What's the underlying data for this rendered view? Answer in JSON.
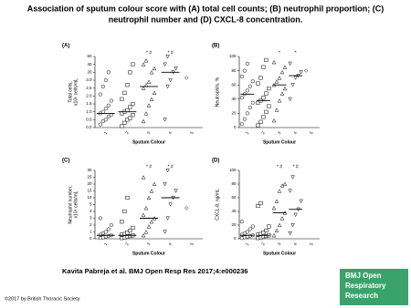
{
  "title": [
    "Association of sputum colour score with (A) total cell counts; (B) neutrophil proportion; (C)",
    "neutrophil number and (D) CXCL-8 concentration."
  ],
  "citation": "Kavita Pabreja et al. BMJ Open Resp Res 2017;4:e000236",
  "copyright": "©2017 by British Thoracic Society",
  "logo": [
    "BMJ Open",
    "Respiratory",
    "Research"
  ],
  "chart_data": [
    {
      "type": "strip",
      "panel": "(A)",
      "ylabel": [
        "Total cells,",
        "x10⁶ cells/mL"
      ],
      "xlabel": "Sputum Colour",
      "categories": [
        "1",
        "2",
        "3",
        "4",
        "5"
      ],
      "markers": [
        "circle",
        "square",
        "triangle-up",
        "triangle-down",
        "diamond"
      ],
      "values": [
        [
          0.2,
          0.4,
          0.5,
          0.7,
          0.8,
          0.9,
          1.0,
          1.2,
          1.4,
          1.7,
          2.1,
          2.6,
          3.0,
          20
        ],
        [
          0.1,
          0.3,
          0.5,
          0.6,
          0.8,
          0.9,
          1.0,
          1.1,
          1.3,
          1.5,
          1.8,
          2.2,
          2.7,
          20,
          40
        ],
        [
          0.4,
          0.9,
          1.4,
          1.8,
          2.2,
          2.5,
          2.7,
          2.9,
          20,
          30,
          40,
          50
        ],
        [
          0.5,
          2.6,
          3.0,
          20,
          30,
          40,
          60
        ],
        [
          8
        ]
      ],
      "medians": [
        0.9,
        1.0,
        2.6,
        20,
        null
      ],
      "annotations": [
        {
          "x": "3",
          "text": "* #"
        },
        {
          "x": "4",
          "text": "* #"
        }
      ],
      "ylim": [
        0,
        60
      ],
      "scale": "tick-spaced",
      "yticks": [
        {
          "value": 0,
          "label": "0.0"
        },
        {
          "value": 0.5,
          "label": "0.5"
        },
        {
          "value": 1,
          "label": "1.0"
        },
        {
          "value": 1.5,
          "label": "1.5"
        },
        {
          "value": 2,
          "label": "2.0"
        },
        {
          "value": 2.5,
          "label": "2.5"
        },
        {
          "value": 3,
          "label": "3.0"
        },
        20,
        40,
        60
      ]
    },
    {
      "type": "strip",
      "panel": "(B)",
      "ylabel": [
        "Neutrophils, %"
      ],
      "xlabel": "Sputum Colour",
      "categories": [
        "1",
        "2",
        "3",
        "4",
        "5"
      ],
      "markers": [
        "circle",
        "square",
        "triangle-up",
        "triangle-down",
        "diamond"
      ],
      "values": [
        [
          5,
          12,
          20,
          28,
          35,
          42,
          47,
          52,
          58,
          65,
          72,
          80,
          90
        ],
        [
          3,
          8,
          15,
          22,
          30,
          35,
          38,
          42,
          48,
          55,
          62,
          70,
          85,
          95
        ],
        [
          10,
          25,
          38,
          48,
          55,
          60,
          65,
          70,
          78,
          85,
          92
        ],
        [
          40,
          60,
          70,
          73,
          78,
          90
        ],
        [
          80
        ]
      ],
      "medians": [
        47,
        38,
        60,
        73,
        null
      ],
      "annotations": [
        {
          "x": "3",
          "text": "*"
        },
        {
          "x": "4",
          "text": "*"
        }
      ],
      "ylim": [
        0,
        100
      ],
      "scale": "linear",
      "yticks": [
        0,
        20,
        40,
        60,
        80,
        100
      ]
    },
    {
      "type": "strip",
      "panel": "(C)",
      "ylabel": [
        "Neutrophil number,",
        "x10⁶ cells/mL"
      ],
      "xlabel": "Sputum Colour",
      "categories": [
        "1",
        "2",
        "3",
        "4",
        "5"
      ],
      "markers": [
        "circle",
        "square",
        "triangle-up",
        "triangle-down",
        "diamond"
      ],
      "values": [
        [
          0.1,
          0.2,
          0.3,
          0.4,
          0.5,
          0.6,
          0.8,
          1.0,
          1.4,
          2.0,
          3.0
        ],
        [
          0.1,
          0.2,
          0.3,
          0.4,
          0.5,
          0.6,
          0.7,
          0.9,
          1.2,
          1.6,
          2.5,
          4.0,
          10
        ],
        [
          0.5,
          1.0,
          1.8,
          2.5,
          3.0,
          3.5,
          4.5,
          10,
          15,
          20,
          25
        ],
        [
          1.0,
          3.0,
          5.0,
          10,
          15,
          20,
          30
        ],
        [
          4.5
        ]
      ],
      "medians": [
        0.5,
        0.5,
        3.0,
        10,
        null
      ],
      "annotations": [
        {
          "x": "3",
          "text": "* #"
        },
        {
          "x": "4",
          "text": "* #"
        }
      ],
      "ylim": [
        0,
        30
      ],
      "scale": "tick-spaced",
      "yticks": [
        0,
        1,
        2,
        3,
        4,
        5,
        10,
        15,
        20,
        25,
        30
      ]
    },
    {
      "type": "strip",
      "panel": "(D)",
      "ylabel": [
        "CXCL-8, ng/mL"
      ],
      "xlabel": "Sputum Colour",
      "categories": [
        "1",
        "2",
        "3",
        "4",
        "5"
      ],
      "markers": [
        "circle",
        "square",
        "triangle-up",
        "triangle-down",
        "diamond"
      ],
      "values": [
        [
          1,
          2,
          3,
          4,
          5,
          6,
          8,
          10,
          14,
          18,
          25
        ],
        [
          1,
          2,
          3,
          4,
          5,
          6,
          7,
          9,
          12,
          18,
          48,
          52
        ],
        [
          5,
          12,
          20,
          30,
          38,
          45,
          55,
          70,
          78,
          80
        ],
        [
          8,
          20,
          35,
          43,
          55,
          70,
          90
        ],
        []
      ],
      "medians": [
        5,
        5,
        38,
        43,
        null
      ],
      "annotations": [
        {
          "x": "3",
          "text": "* #"
        },
        {
          "x": "4",
          "text": "* #"
        }
      ],
      "ylim": [
        0,
        100
      ],
      "scale": "linear",
      "yticks": [
        0,
        20,
        40,
        60,
        80,
        100
      ]
    }
  ]
}
